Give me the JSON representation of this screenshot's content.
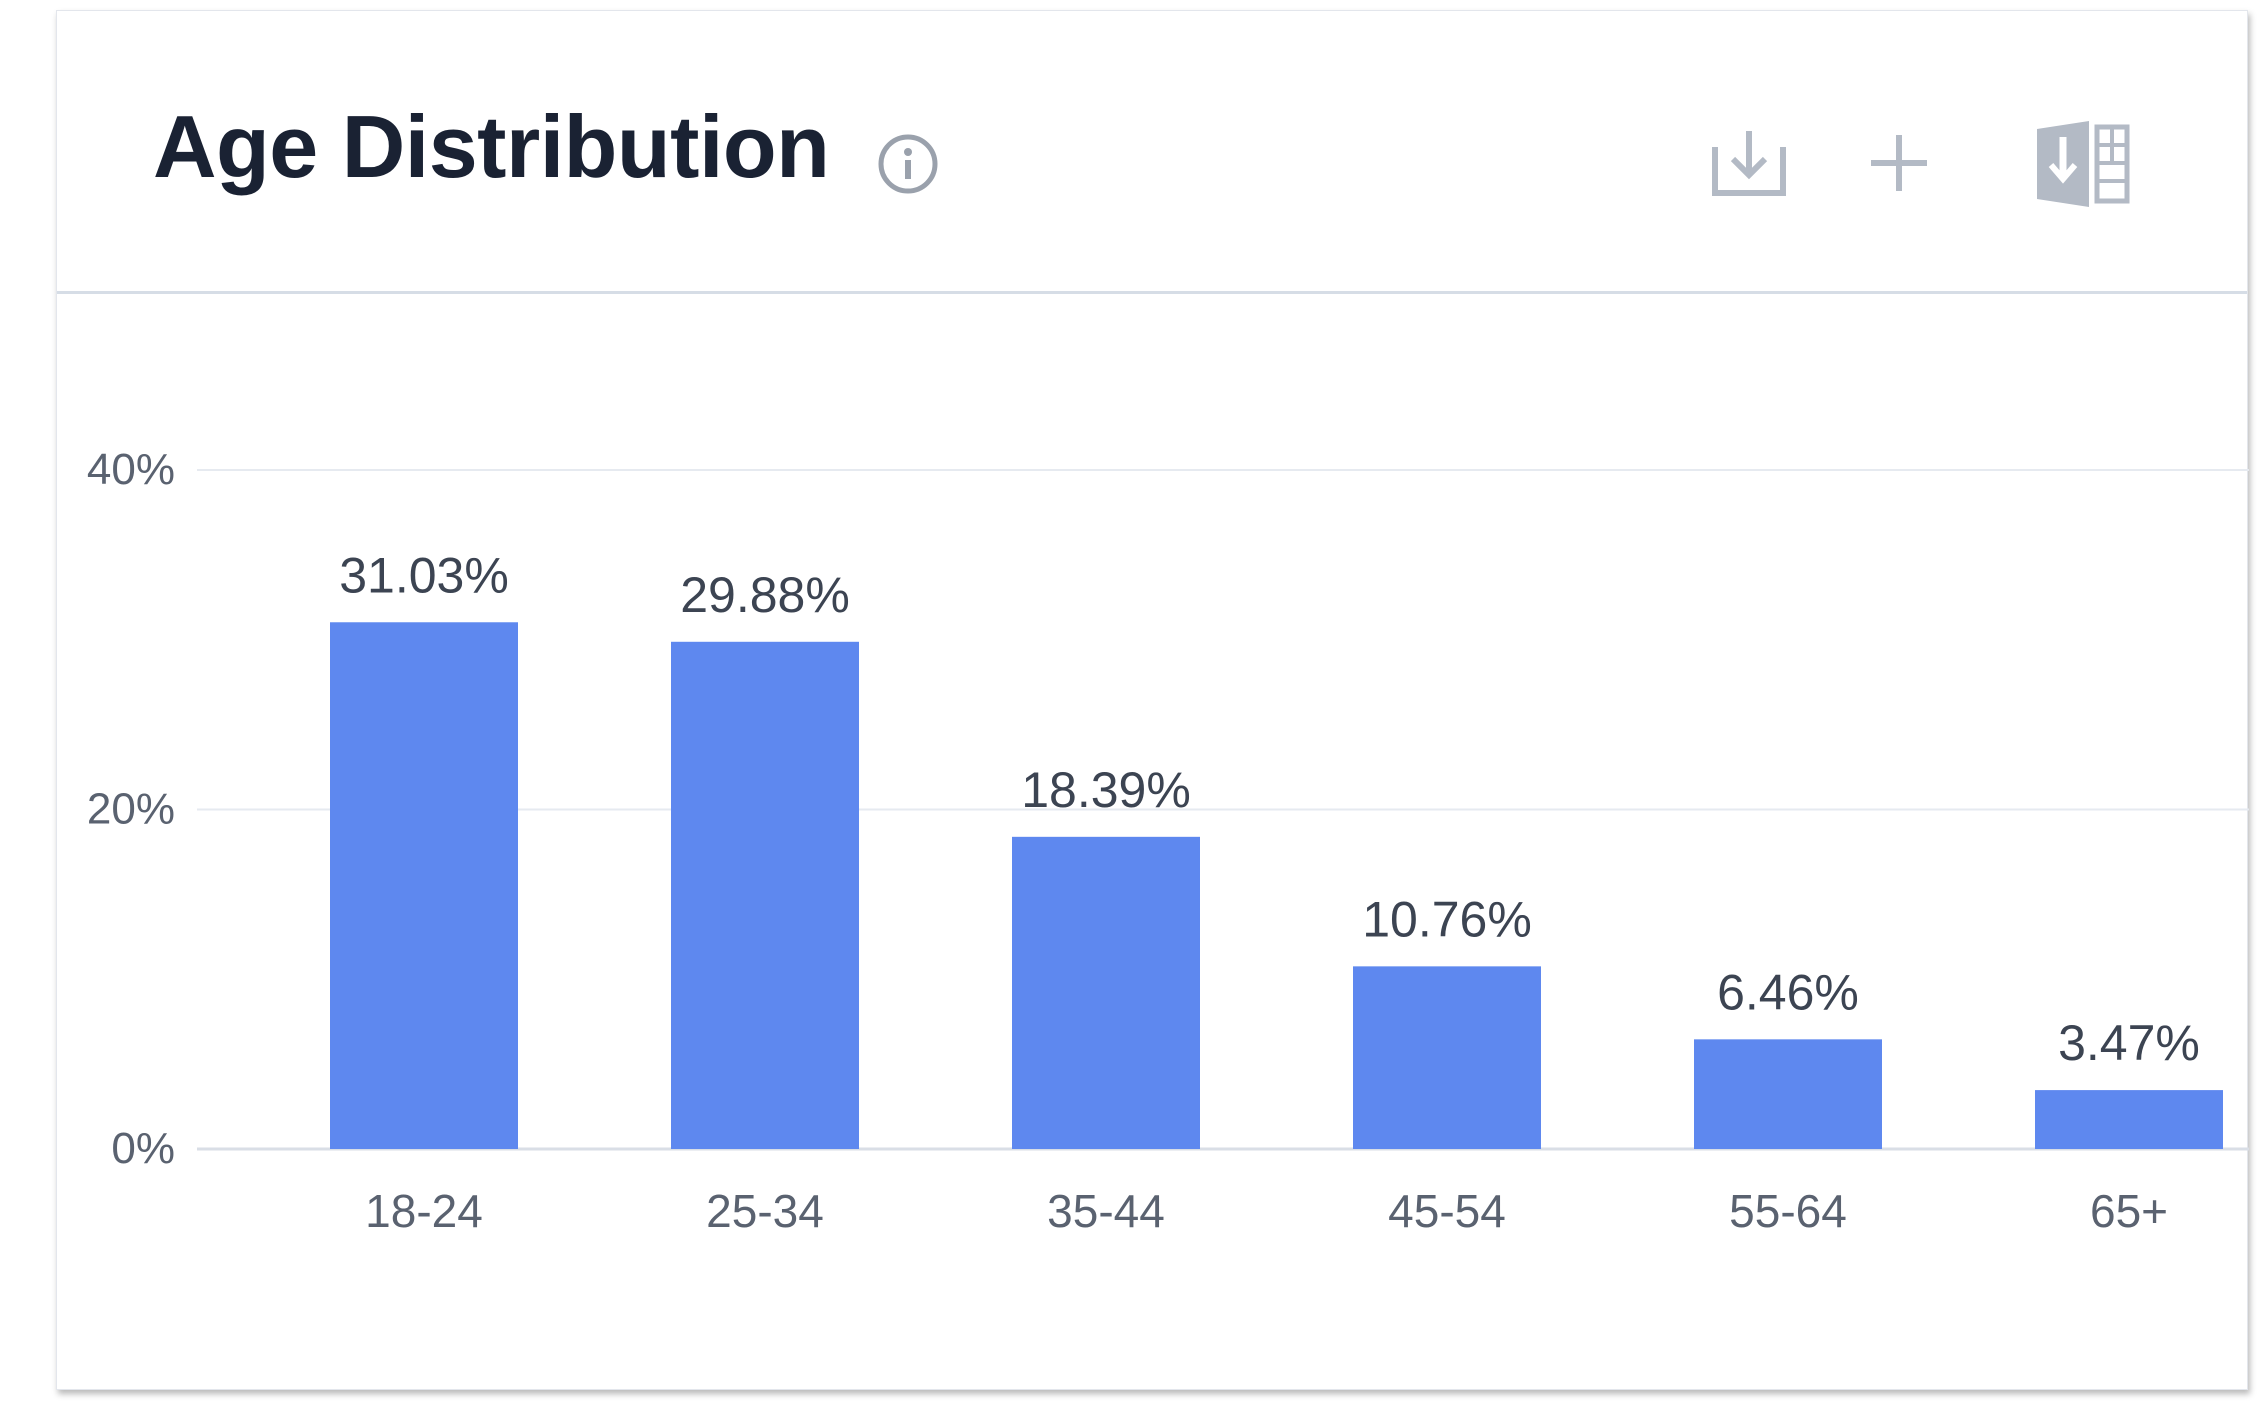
{
  "header": {
    "title": "Age Distribution",
    "info_icon": "info-circle-icon",
    "actions": [
      {
        "name": "download-button",
        "icon": "download-icon"
      },
      {
        "name": "add-button",
        "icon": "plus-icon"
      },
      {
        "name": "export-excel-button",
        "icon": "excel-export-icon"
      }
    ]
  },
  "colors": {
    "bar": "#5e88ef",
    "title": "#1a2233",
    "axis_text": "#5a6270",
    "label_text": "#3c4452",
    "grid": "#e6eaf0",
    "icon": "#b3bac5"
  },
  "chart_data": {
    "type": "bar",
    "title": "Age Distribution",
    "xlabel": "",
    "ylabel": "",
    "categories": [
      "18-24",
      "25-34",
      "35-44",
      "45-54",
      "55-64",
      "65+"
    ],
    "values": [
      31.03,
      29.88,
      18.39,
      10.76,
      6.46,
      3.47
    ],
    "value_labels": [
      "31.03%",
      "29.88%",
      "18.39%",
      "10.76%",
      "6.46%",
      "3.47%"
    ],
    "ylim": [
      0,
      40
    ],
    "yticks": [
      0,
      20,
      40
    ],
    "ytick_labels": [
      "0%",
      "20%",
      "40%"
    ],
    "grid": true,
    "legend": "none"
  }
}
